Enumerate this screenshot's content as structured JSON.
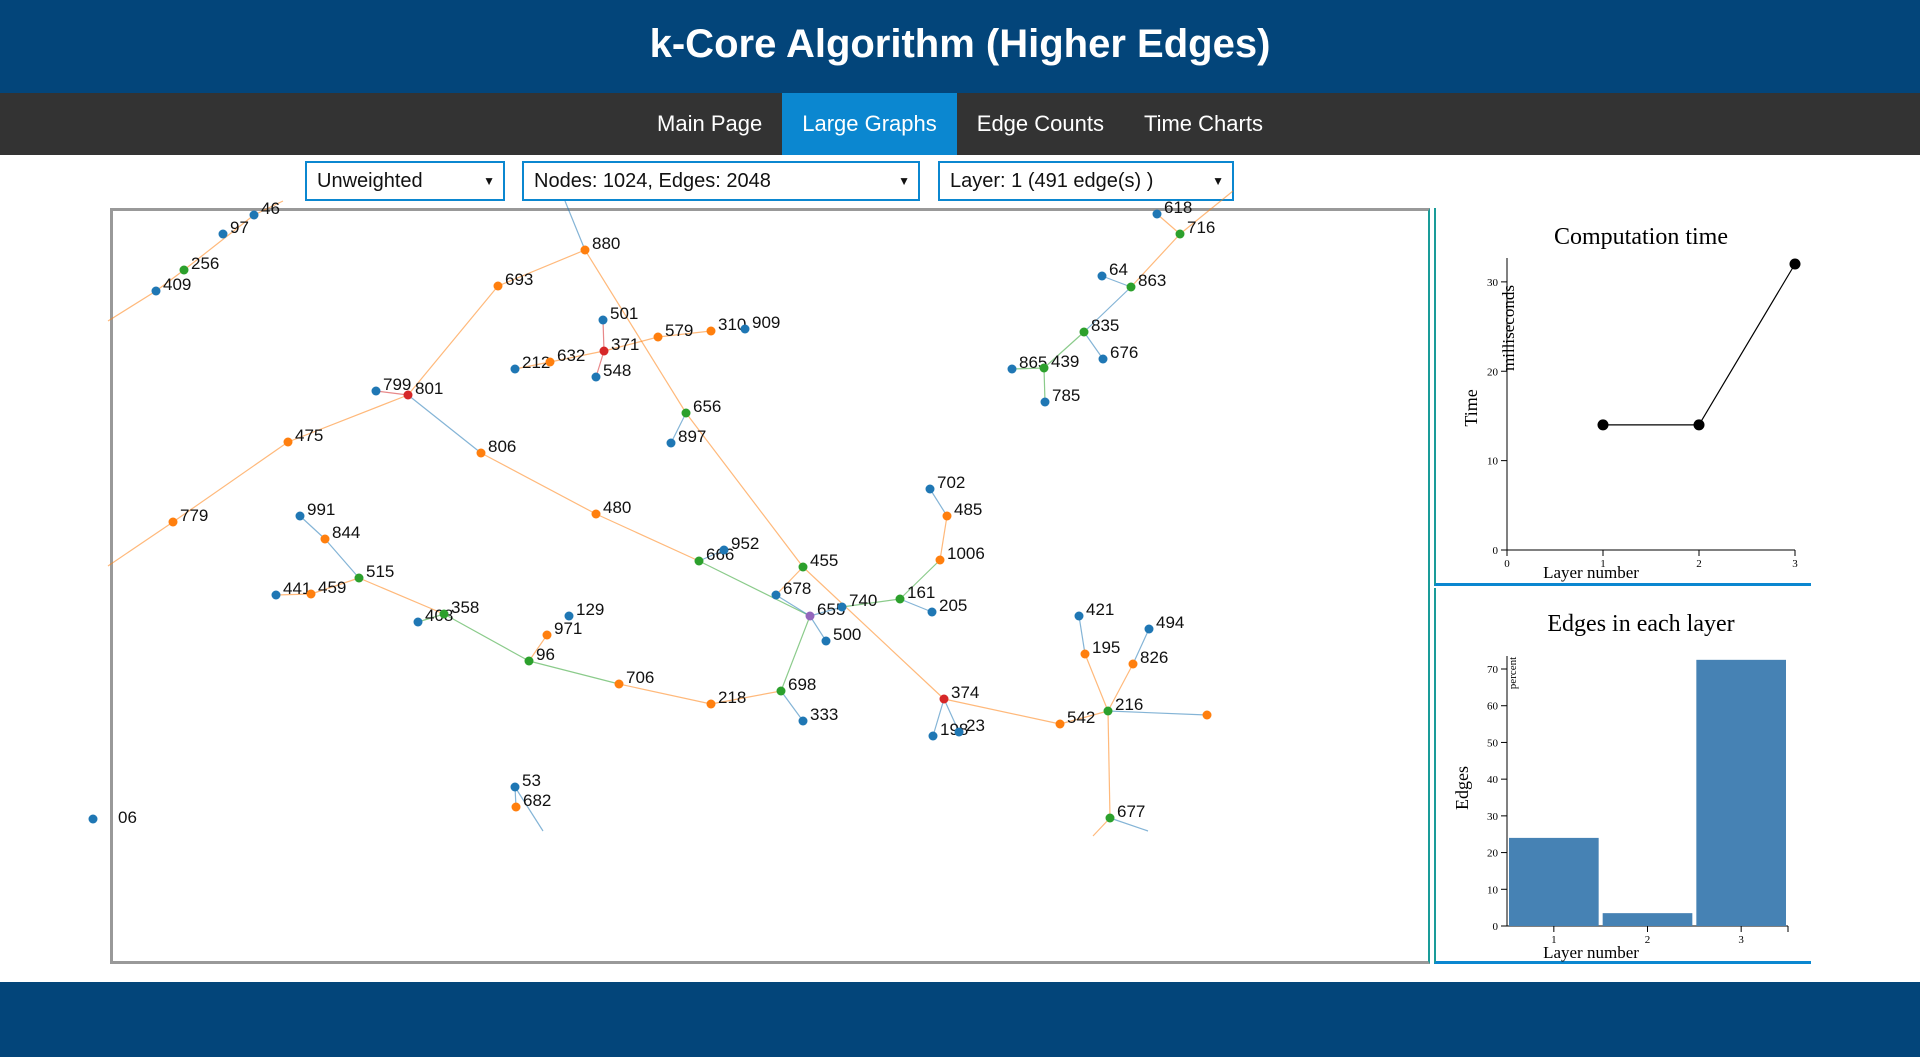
{
  "header": {
    "title": "k-Core Algorithm (Higher Edges)"
  },
  "nav": {
    "items": [
      {
        "label": "Main Page",
        "active": false
      },
      {
        "label": "Large Graphs",
        "active": true
      },
      {
        "label": "Edge Counts",
        "active": false
      },
      {
        "label": "Time Charts",
        "active": false
      }
    ]
  },
  "controls": {
    "weight_select": "Unweighted",
    "graph_select": "Nodes: 1024, Edges: 2048",
    "layer_select": "Layer: 1 (491 edge(s) )"
  },
  "colors": {
    "blue": "#1f77b4",
    "orange": "#ff7f0e",
    "green": "#2ca02c",
    "red": "#d62728",
    "purple": "#9467bd",
    "bar": "#4682b4",
    "header": "#03457a",
    "nav_active": "#0b87d0"
  },
  "graph": {
    "nodes": [
      {
        "id": "46",
        "c": "blue"
      },
      {
        "id": "97",
        "c": "blue"
      },
      {
        "id": "256",
        "c": "green"
      },
      {
        "id": "409",
        "c": "blue"
      },
      {
        "id": "880",
        "c": "orange"
      },
      {
        "id": "693",
        "c": "orange"
      },
      {
        "id": "501",
        "c": "blue"
      },
      {
        "id": "371",
        "c": "red"
      },
      {
        "id": "579",
        "c": "orange"
      },
      {
        "id": "310",
        "c": "orange"
      },
      {
        "id": "909",
        "c": "blue"
      },
      {
        "id": "212",
        "c": "blue"
      },
      {
        "id": "632",
        "c": "orange"
      },
      {
        "id": "548",
        "c": "blue"
      },
      {
        "id": "799",
        "c": "blue"
      },
      {
        "id": "801",
        "c": "red"
      },
      {
        "id": "475",
        "c": "orange"
      },
      {
        "id": "806",
        "c": "orange"
      },
      {
        "id": "656",
        "c": "green"
      },
      {
        "id": "897",
        "c": "blue"
      },
      {
        "id": "779",
        "c": "orange"
      },
      {
        "id": "480",
        "c": "orange"
      },
      {
        "id": "991",
        "c": "blue"
      },
      {
        "id": "844",
        "c": "orange"
      },
      {
        "id": "515",
        "c": "green"
      },
      {
        "id": "441",
        "c": "blue"
      },
      {
        "id": "459",
        "c": "orange"
      },
      {
        "id": "408",
        "c": "blue"
      },
      {
        "id": "358",
        "c": "green"
      },
      {
        "id": "129",
        "c": "blue"
      },
      {
        "id": "971",
        "c": "orange"
      },
      {
        "id": "96",
        "c": "green"
      },
      {
        "id": "706",
        "c": "orange"
      },
      {
        "id": "218",
        "c": "orange"
      },
      {
        "id": "666",
        "c": "green"
      },
      {
        "id": "952",
        "c": "blue"
      },
      {
        "id": "455",
        "c": "green"
      },
      {
        "id": "678",
        "c": "blue"
      },
      {
        "id": "655",
        "c": "purple"
      },
      {
        "id": "740",
        "c": "blue"
      },
      {
        "id": "500",
        "c": "blue"
      },
      {
        "id": "698",
        "c": "green"
      },
      {
        "id": "333",
        "c": "blue"
      },
      {
        "id": "702",
        "c": "blue"
      },
      {
        "id": "485",
        "c": "orange"
      },
      {
        "id": "1006",
        "c": "orange"
      },
      {
        "id": "161",
        "c": "green"
      },
      {
        "id": "205",
        "c": "blue"
      },
      {
        "id": "374",
        "c": "red"
      },
      {
        "id": "198",
        "c": "blue"
      },
      {
        "id": "23",
        "c": "blue"
      },
      {
        "id": "542",
        "c": "orange"
      },
      {
        "id": "421",
        "c": "blue"
      },
      {
        "id": "195",
        "c": "orange"
      },
      {
        "id": "494",
        "c": "blue"
      },
      {
        "id": "826",
        "c": "orange"
      },
      {
        "id": "216",
        "c": "green"
      },
      {
        "id": "677",
        "c": "green"
      },
      {
        "id": "53",
        "c": "blue"
      },
      {
        "id": "682",
        "c": "orange"
      },
      {
        "id": "64",
        "c": "blue"
      },
      {
        "id": "863",
        "c": "green"
      },
      {
        "id": "835",
        "c": "green"
      },
      {
        "id": "676",
        "c": "blue"
      },
      {
        "id": "865",
        "c": "blue"
      },
      {
        "id": "439",
        "c": "green"
      },
      {
        "id": "785",
        "c": "blue"
      },
      {
        "id": "716",
        "c": "green"
      },
      {
        "id": "618",
        "c": "blue"
      },
      {
        "id": "06",
        "c": "blue"
      },
      {
        "id": "",
        "c": "orange"
      }
    ],
    "edges": [
      [
        "256",
        "46",
        "orange"
      ],
      [
        "409",
        "256",
        "orange"
      ],
      [
        "880",
        "693",
        "orange"
      ],
      [
        "693",
        "801",
        "orange"
      ],
      [
        "880",
        "656",
        "orange"
      ],
      [
        "501",
        "371",
        "red"
      ],
      [
        "371",
        "548",
        "red"
      ],
      [
        "371",
        "579",
        "orange"
      ],
      [
        "579",
        "310",
        "orange"
      ],
      [
        "632",
        "371",
        "orange"
      ],
      [
        "212",
        "632",
        "orange"
      ],
      [
        "799",
        "801",
        "red"
      ],
      [
        "801",
        "475",
        "orange"
      ],
      [
        "801",
        "806",
        "blue"
      ],
      [
        "475",
        "779",
        "orange"
      ],
      [
        "806",
        "480",
        "orange"
      ],
      [
        "480",
        "666",
        "orange"
      ],
      [
        "656",
        "897",
        "blue"
      ],
      [
        "656",
        "455",
        "orange"
      ],
      [
        "991",
        "844",
        "blue"
      ],
      [
        "844",
        "515",
        "blue"
      ],
      [
        "441",
        "459",
        "orange"
      ],
      [
        "459",
        "515",
        "orange"
      ],
      [
        "515",
        "358",
        "orange"
      ],
      [
        "408",
        "358",
        "green"
      ],
      [
        "358",
        "96",
        "green"
      ],
      [
        "971",
        "96",
        "orange"
      ],
      [
        "96",
        "706",
        "green"
      ],
      [
        "706",
        "218",
        "orange"
      ],
      [
        "218",
        "698",
        "orange"
      ],
      [
        "666",
        "952",
        "blue"
      ],
      [
        "666",
        "655",
        "green"
      ],
      [
        "455",
        "678",
        "orange"
      ],
      [
        "678",
        "655",
        "blue"
      ],
      [
        "655",
        "740",
        "blue"
      ],
      [
        "655",
        "500",
        "blue"
      ],
      [
        "655",
        "698",
        "green"
      ],
      [
        "698",
        "333",
        "blue"
      ],
      [
        "740",
        "161",
        "green"
      ],
      [
        "161",
        "1006",
        "green"
      ],
      [
        "161",
        "205",
        "blue"
      ],
      [
        "1006",
        "485",
        "orange"
      ],
      [
        "485",
        "702",
        "blue"
      ],
      [
        "455",
        "374",
        "orange"
      ],
      [
        "374",
        "198",
        "blue"
      ],
      [
        "374",
        "23",
        "blue"
      ],
      [
        "374",
        "542",
        "orange"
      ],
      [
        "542",
        "216",
        "orange"
      ],
      [
        "216",
        "",
        "blue"
      ],
      [
        "421",
        "195",
        "blue"
      ],
      [
        "195",
        "216",
        "orange"
      ],
      [
        "494",
        "826",
        "blue"
      ],
      [
        "826",
        "216",
        "orange"
      ],
      [
        "216",
        "677",
        "orange"
      ],
      [
        "53",
        "682",
        "blue"
      ],
      [
        "64",
        "863",
        "blue"
      ],
      [
        "863",
        "835",
        "blue"
      ],
      [
        "835",
        "676",
        "blue"
      ],
      [
        "835",
        "439",
        "green"
      ],
      [
        "865",
        "439",
        "green"
      ],
      [
        "439",
        "785",
        "green"
      ],
      [
        "863",
        "716",
        "orange"
      ],
      [
        "716",
        "618",
        "orange"
      ]
    ]
  },
  "time_chart": {
    "title": "Computation time",
    "ylabel_outer": "Time",
    "ylabel_inner": "milliseconds",
    "xlabel": "Layer number",
    "x_ticks": [
      "0",
      "1",
      "2",
      "3"
    ],
    "y_ticks": [
      "0",
      "10",
      "20",
      "30"
    ]
  },
  "edges_chart": {
    "title": "Edges in each layer",
    "ylabel_outer": "Edges",
    "ylabel_inner": "percent",
    "xlabel": "Layer number",
    "y_ticks": [
      "0",
      "10",
      "20",
      "30",
      "40",
      "50",
      "60",
      "70"
    ]
  },
  "chart_data": [
    {
      "type": "line",
      "title": "Computation time",
      "xlabel": "Layer number",
      "ylabel": "Time",
      "x": [
        1,
        2,
        3
      ],
      "y": [
        14,
        14,
        32
      ],
      "xlim": [
        0,
        3
      ],
      "ylim": [
        0,
        32
      ]
    },
    {
      "type": "bar",
      "title": "Edges in each layer",
      "xlabel": "Layer number",
      "ylabel": "Edges",
      "categories": [
        "1",
        "2",
        "3"
      ],
      "values": [
        24,
        3.5,
        72.5
      ],
      "ylim": [
        0,
        73
      ]
    }
  ]
}
